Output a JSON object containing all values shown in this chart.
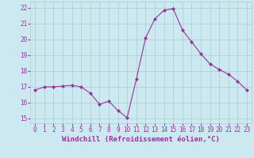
{
  "x": [
    0,
    1,
    2,
    3,
    4,
    5,
    6,
    7,
    8,
    9,
    10,
    11,
    12,
    13,
    14,
    15,
    16,
    17,
    18,
    19,
    20,
    21,
    22,
    23
  ],
  "y": [
    16.8,
    17.0,
    17.0,
    17.05,
    17.1,
    17.0,
    16.6,
    15.9,
    16.1,
    15.5,
    15.05,
    17.5,
    20.1,
    21.3,
    21.85,
    21.95,
    20.6,
    19.85,
    19.1,
    18.45,
    18.1,
    17.8,
    17.35,
    16.8
  ],
  "line_color": "#993399",
  "marker": "D",
  "markersize": 2.0,
  "linewidth": 0.8,
  "xlabel": "Windchill (Refroidissement éolien,°C)",
  "xlim": [
    -0.5,
    23.5
  ],
  "ylim": [
    14.7,
    22.4
  ],
  "yticks": [
    15,
    16,
    17,
    18,
    19,
    20,
    21,
    22
  ],
  "xticks": [
    0,
    1,
    2,
    3,
    4,
    5,
    6,
    7,
    8,
    9,
    10,
    11,
    12,
    13,
    14,
    15,
    16,
    17,
    18,
    19,
    20,
    21,
    22,
    23
  ],
  "bg_color": "#cce8f0",
  "grid_color": "#aacccc",
  "tick_color": "#993399",
  "label_color": "#993399",
  "tick_fontsize": 5.5,
  "xlabel_fontsize": 6.5
}
